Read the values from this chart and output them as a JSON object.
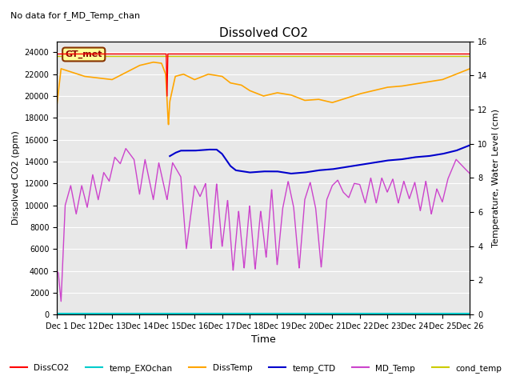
{
  "title": "Dissolved CO2",
  "subtitle": "No data for f_MD_Temp_chan",
  "xlabel": "Time",
  "ylabel_left": "Dissolved CO2 (ppm)",
  "ylabel_right": "Temperature, Water Level (cm)",
  "ylim_left": [
    0,
    25000
  ],
  "ylim_right": [
    0,
    16
  ],
  "yticks_left": [
    0,
    2000,
    4000,
    6000,
    8000,
    10000,
    12000,
    14000,
    16000,
    18000,
    20000,
    22000,
    24000
  ],
  "yticks_right": [
    0,
    2,
    4,
    6,
    8,
    10,
    12,
    14,
    16
  ],
  "xtick_labels": [
    "Dec 1",
    "Dec 12",
    "Dec 13",
    "Dec 14",
    "Dec 15",
    "Dec 16",
    "Dec 17",
    "Dec 18",
    "Dec 19",
    "Dec 20",
    "Dec 21",
    "Dec 22",
    "Dec 23",
    "Dec 24",
    "Dec 25",
    "Dec 26"
  ],
  "bg_color": "#e8e8e8",
  "legend_entries": [
    "DissCO2",
    "temp_EXOchan",
    "DissTemp",
    "temp_CTD",
    "MD_Temp",
    "cond_temp"
  ],
  "legend_colors": [
    "#ff0000",
    "#00cccc",
    "#ffa500",
    "#0000cc",
    "#cc44cc",
    "#cccc00"
  ],
  "annotation_text": "GT_met",
  "grid_color": "#ffffff"
}
